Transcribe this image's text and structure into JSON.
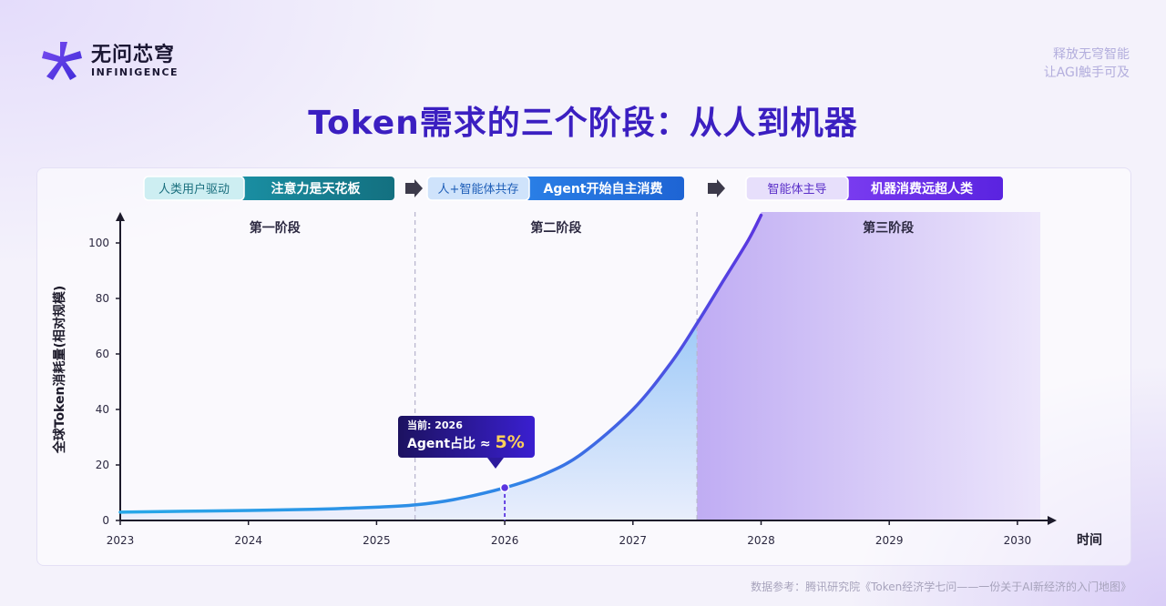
{
  "brand": {
    "name_cn": "无问芯穹",
    "name_en": "INFINIGENCE",
    "logo_icon": "brand-logo-icon"
  },
  "slogan": {
    "line1": "释放无穹智能",
    "line2": "让AGI触手可及"
  },
  "title": "Token需求的三个阶段：从人到机器",
  "stages": [
    {
      "tag": "人类用户驱动",
      "desc": "注意力是天花板",
      "label": "第一阶段"
    },
    {
      "tag": "人+智能体共存",
      "desc": "Agent开始自主消费",
      "label": "第二阶段"
    },
    {
      "tag": "智能体主导",
      "desc": "机器消费远超人类",
      "label": "第三阶段"
    }
  ],
  "tooltip": {
    "line1": "当前: 2026",
    "line2_prefix": "Agent占比 ≈ ",
    "value": "5%"
  },
  "source": "数据参考：腾讯研究院《Token经济学七问——一份关于AI新经济的入门地图》",
  "colors": {
    "title": "#3b1fc1",
    "curve_start": "#28a8e8",
    "curve_end": "#5b35e0",
    "stage3_fill": "#c9b8f5"
  },
  "chart_data": {
    "type": "area",
    "xlabel": "时间",
    "ylabel": "全球Token消耗量(相对规模)",
    "x_ticks": [
      2023,
      2024,
      2025,
      2026,
      2027,
      2028,
      2029,
      2030
    ],
    "y_ticks": [
      0,
      20,
      40,
      60,
      80,
      100
    ],
    "xlim": [
      2023,
      2030.2
    ],
    "ylim": [
      0,
      110
    ],
    "grid": false,
    "stage_boundaries": [
      2025.3,
      2027.5
    ],
    "current_marker": {
      "x": 2026,
      "y": 11.8
    },
    "series": [
      {
        "x": [
          2023,
          2023.5,
          2024,
          2024.5,
          2025,
          2025.3,
          2025.6,
          2026,
          2026.3,
          2026.6,
          2027,
          2027.3,
          2027.5,
          2027.7,
          2027.9,
          2028
        ],
        "y": [
          3,
          3.3,
          3.6,
          4,
          4.8,
          5.6,
          7.5,
          11.8,
          16.5,
          24,
          40,
          57,
          71,
          86,
          101,
          110
        ]
      }
    ]
  }
}
